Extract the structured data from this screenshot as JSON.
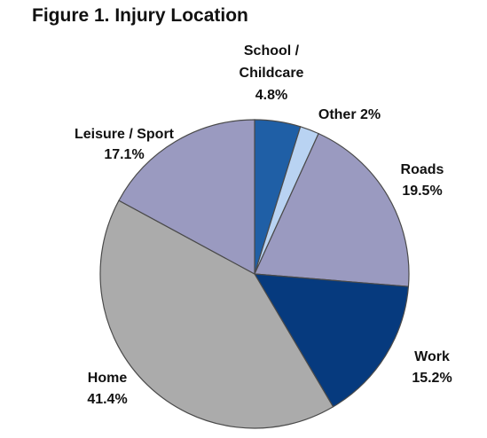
{
  "chart_data": {
    "type": "pie",
    "title": "Figure 1. Injury Location",
    "slices": [
      {
        "label": "School /\nChildcare",
        "value": 4.8,
        "value_label": "4.8%",
        "color": "#1f5fa6"
      },
      {
        "label": "Other",
        "value": 2.0,
        "value_label": "2%",
        "color": "#b9d3f2"
      },
      {
        "label": "Roads",
        "value": 19.5,
        "value_label": "19.5%",
        "color": "#9a9ac0"
      },
      {
        "label": "Work",
        "value": 15.2,
        "value_label": "15.2%",
        "color": "#063a7e"
      },
      {
        "label": "Home",
        "value": 41.4,
        "value_label": "41.4%",
        "color": "#ababab"
      },
      {
        "label": "Leisure / Sport",
        "value": 17.1,
        "value_label": "17.1%",
        "color": "#9a9ac0"
      }
    ],
    "start_angle": "top",
    "direction": "clockwise",
    "legend": "none"
  }
}
